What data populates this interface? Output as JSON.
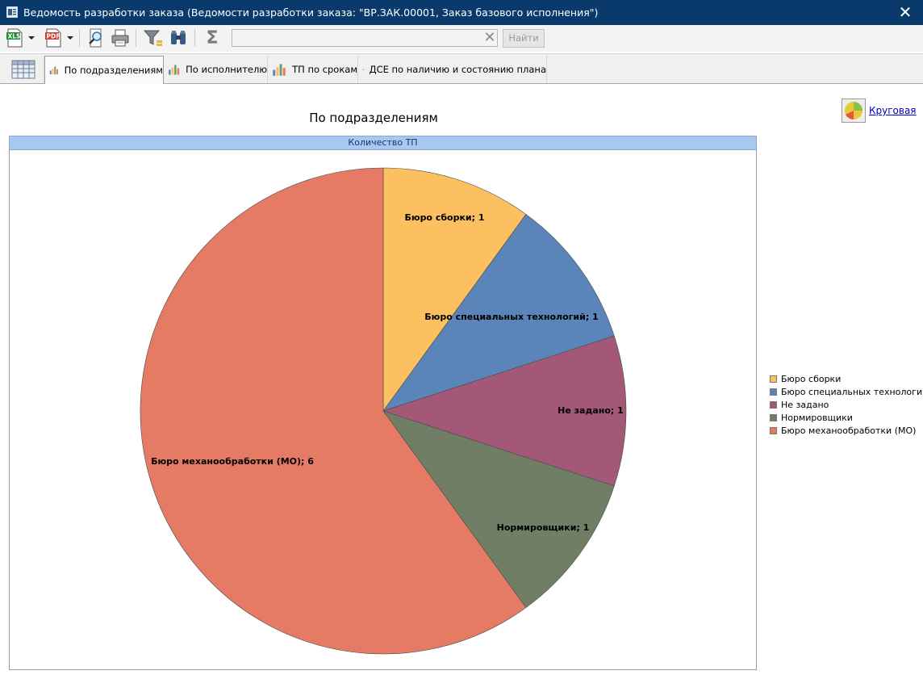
{
  "window": {
    "title": "Ведомость разработки заказа (Ведомости разработки заказа: \"ВР.ЗАК.00001, Заказ базового исполнения\")",
    "close_glyph": "✕"
  },
  "toolbar": {
    "buttons": [
      "xls-export-icon",
      "pdf-export-icon",
      "preview-icon",
      "print-icon",
      "filter-icon",
      "binoculars-icon",
      "sum-icon"
    ],
    "xls_label": "XLS",
    "pdf_label": "PDF",
    "sum_glyph": "Σ",
    "search_value": "",
    "clear_glyph": "✕",
    "find_label": "Найти"
  },
  "tabs": [
    {
      "label": "",
      "icon": "table-icon"
    },
    {
      "label": "По подразделениям",
      "icon": "bar-chart-icon",
      "active": true
    },
    {
      "label": "По исполнителю",
      "icon": "bar-chart-icon"
    },
    {
      "label": "ТП по срокам",
      "icon": "bar-chart-icon"
    },
    {
      "label": "ДСЕ по наличию и состоянию плана",
      "icon": "bar-chart-icon"
    }
  ],
  "chart_view": {
    "switch_icon": "pie-chart-icon",
    "switch_label": "Круговая"
  },
  "chart_data": {
    "type": "pie",
    "title": "По подразделениям",
    "series_name": "Количество ТП",
    "slices": [
      {
        "name": "Бюро сборки",
        "value": 1,
        "label": "Бюро сборки; 1",
        "color": "#fdc060"
      },
      {
        "name": "Бюро специальных технологий",
        "value": 1,
        "label": "Бюро специальных технологий; 1",
        "color": "#5b84b8"
      },
      {
        "name": "Не задано",
        "value": 1,
        "label": "Не задано; 1",
        "color": "#a45877"
      },
      {
        "name": "Нормировщики",
        "value": 1,
        "label": "Нормировщики; 1",
        "color": "#6f7e64"
      },
      {
        "name": "Бюро механообработки (МО)",
        "value": 6,
        "label": "Бюро механообработки (МО); 6",
        "color": "#e57a65"
      }
    ],
    "legend_position": "right"
  }
}
